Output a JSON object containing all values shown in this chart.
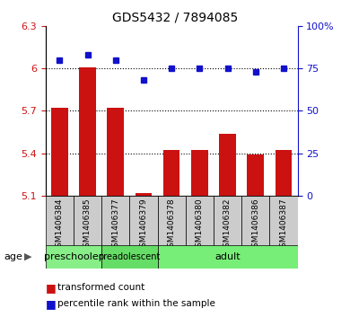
{
  "title": "GDS5432 / 7894085",
  "samples": [
    "GSM1406384",
    "GSM1406385",
    "GSM1406377",
    "GSM1406379",
    "GSM1406378",
    "GSM1406380",
    "GSM1406382",
    "GSM1406386",
    "GSM1406387"
  ],
  "red_values": [
    5.72,
    6.01,
    5.72,
    5.12,
    5.42,
    5.42,
    5.54,
    5.39,
    5.42
  ],
  "blue_values": [
    80,
    83,
    80,
    68,
    75,
    75,
    75,
    73,
    75
  ],
  "ylim_left": [
    5.1,
    6.3
  ],
  "ylim_right": [
    0,
    100
  ],
  "yticks_left": [
    5.1,
    5.4,
    5.7,
    6.0,
    6.3
  ],
  "yticks_right": [
    0,
    25,
    50,
    75,
    100
  ],
  "ytick_labels_left": [
    "5.1",
    "5.4",
    "5.7",
    "6",
    "6.3"
  ],
  "ytick_labels_right": [
    "0",
    "25",
    "50",
    "75",
    "100%"
  ],
  "grid_values": [
    5.4,
    5.7,
    6.0
  ],
  "age_groups": [
    {
      "label": "preschooler",
      "start": 0,
      "end": 2,
      "color": "#88ee88"
    },
    {
      "label": "preadolescent",
      "start": 2,
      "end": 4,
      "color": "#66dd66"
    },
    {
      "label": "adult",
      "start": 4,
      "end": 9,
      "color": "#77ee77"
    }
  ],
  "bar_color": "#cc1111",
  "dot_color": "#1111cc",
  "sample_bg": "#cccccc",
  "legend_red_label": "transformed count",
  "legend_blue_label": "percentile rank within the sample",
  "age_label": "age",
  "baseline": 5.1
}
